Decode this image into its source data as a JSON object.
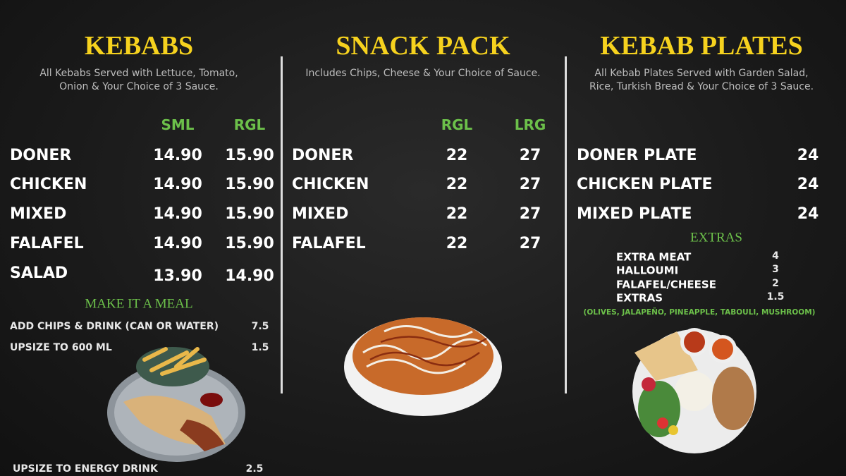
{
  "sections": [
    {
      "title": "KEBABS",
      "description": [
        "All Kebabs Served with Lettuce, Tomato,",
        "Onion & Your Choice of 3 Sauce."
      ],
      "columns": [
        "SML",
        "RGL"
      ],
      "items": [
        {
          "name": "DONER",
          "prices": [
            "14.90",
            "15.90"
          ]
        },
        {
          "name": "CHICKEN",
          "prices": [
            "14.90",
            "15.90"
          ]
        },
        {
          "name": "MIXED",
          "prices": [
            "14.90",
            "15.90"
          ]
        },
        {
          "name": "FALAFEL",
          "prices": [
            "14.90",
            "15.90"
          ]
        },
        {
          "name": "SALAD",
          "prices": [
            "13.90",
            "14.90"
          ]
        }
      ],
      "meal": {
        "title": "MAKE IT A MEAL",
        "items": [
          {
            "name": "ADD CHIPS & DRINK (CAN OR WATER)",
            "price": "7.5"
          },
          {
            "name": "UPSIZE TO 600 ML",
            "price": "1.5"
          },
          {
            "name": "UPSIZE TO ENERGY DRINK",
            "price": "2.5"
          }
        ]
      }
    },
    {
      "title": "SNACK PACK",
      "description": [
        "Includes Chips, Cheese & Your Choice of Sauce."
      ],
      "columns": [
        "RGL",
        "LRG"
      ],
      "items": [
        {
          "name": "DONER",
          "prices": [
            "22",
            "27"
          ]
        },
        {
          "name": "CHICKEN",
          "prices": [
            "22",
            "27"
          ]
        },
        {
          "name": "MIXED",
          "prices": [
            "22",
            "27"
          ]
        },
        {
          "name": "FALAFEL",
          "prices": [
            "22",
            "27"
          ]
        }
      ]
    },
    {
      "title": "KEBAB PLATES",
      "description": [
        "All Kebab Plates Served with Garden Salad,",
        "Rice, Turkish Bread & Your Choice of 3 Sauce."
      ],
      "columns": [],
      "items": [
        {
          "name": "DONER PLATE",
          "prices": [
            "24"
          ]
        },
        {
          "name": "CHICKEN PLATE",
          "prices": [
            "24"
          ]
        },
        {
          "name": "MIXED PLATE",
          "prices": [
            "24"
          ]
        }
      ],
      "extras": {
        "title": "EXTRAS",
        "items": [
          {
            "name": "EXTRA MEAT",
            "price": "4"
          },
          {
            "name": "HALLOUMI",
            "price": "3"
          },
          {
            "name": "FALAFEL/CHEESE",
            "price": "2"
          },
          {
            "name": "EXTRAS",
            "price": "1.5"
          }
        ],
        "note": "(OLIVES, JALAPEÑO, PINEAPPLE, TABOULI, MUSHROOM)"
      }
    }
  ]
}
